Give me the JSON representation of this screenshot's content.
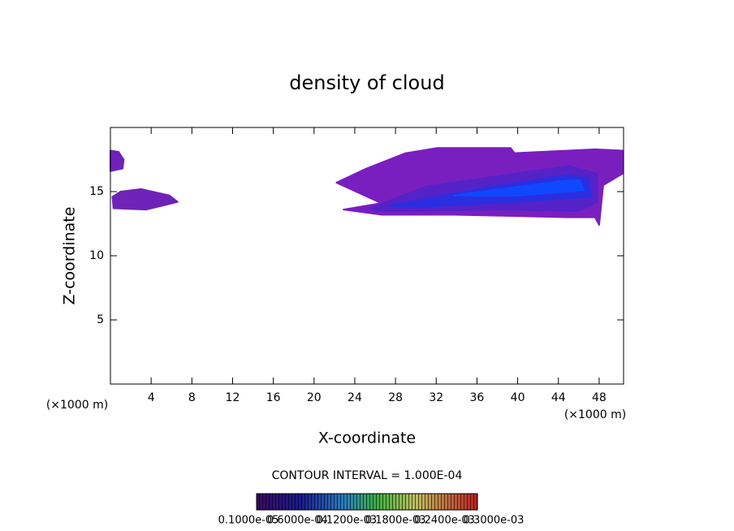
{
  "chart_data": {
    "type": "contour",
    "title": "density of cloud",
    "xlabel": "X-coordinate",
    "ylabel": "Z-coordinate",
    "x_unit_left": "(×1000 m)",
    "x_unit_right": "(×1000 m)",
    "annotation": "CONTOUR INTERVAL = 1.000E-04",
    "xlim": [
      0,
      50.4
    ],
    "ylim": [
      0,
      20
    ],
    "xticks": [
      4,
      8,
      12,
      16,
      20,
      24,
      28,
      32,
      36,
      40,
      44,
      48
    ],
    "yticks": [
      5,
      10,
      15
    ],
    "regions": [
      {
        "level": 1e-06,
        "color": "#6f22b8",
        "x": [
          0,
          1.2,
          1.3,
          0.8,
          0
        ],
        "y": [
          16.6,
          16.8,
          17.5,
          18.1,
          18.2
        ]
      },
      {
        "level": 1e-06,
        "color": "#6f22b8",
        "x": [
          0.3,
          3.5,
          5.6,
          6.6,
          5.8,
          3.0,
          1.0,
          0.2
        ],
        "y": [
          13.7,
          13.6,
          14.0,
          14.2,
          14.7,
          15.2,
          15.0,
          14.6
        ]
      },
      {
        "level": 1e-06,
        "color": "#7a1fbf",
        "x": [
          22.9,
          26.6,
          22.2,
          25,
          29,
          32.1,
          39.3,
          39.7,
          47.6,
          50.3,
          50.3,
          48.4,
          48,
          47.6,
          44.9,
          33.7,
          26.6
        ],
        "y": [
          13.6,
          14.1,
          15.7,
          16.75,
          18,
          18.4,
          18.4,
          18,
          18.3,
          18.2,
          16.4,
          15.5,
          12.4,
          13,
          13,
          13.2,
          13.2
        ]
      },
      {
        "level": 6e-05,
        "color": "#5522c8",
        "x": [
          25.5,
          31,
          38,
          45,
          47.8,
          47.8,
          46,
          38,
          30,
          26
        ],
        "y": [
          13.7,
          15.4,
          16.2,
          17,
          16.4,
          14.2,
          13.5,
          13.6,
          13.5,
          13.5
        ]
      },
      {
        "level": 0.00012,
        "color": "#2a2ee0",
        "x": [
          27.4,
          36.9,
          44.9,
          46.9,
          47.3,
          40.9,
          30.5
        ],
        "y": [
          13.9,
          15.3,
          16.3,
          16,
          14.6,
          14.25,
          13.8
        ]
      },
      {
        "level": 0.00018,
        "color": "#1048ff",
        "x": [
          33.7,
          44.1,
          46.1,
          46.5,
          40.1
        ],
        "y": [
          14.7,
          15.8,
          15.9,
          15.1,
          14.7
        ]
      }
    ],
    "colorbar_labels": [
      "0.1000e-05",
      "0.6000e-04",
      "0.1200e-03",
      "0.1800e-03",
      "0.2400e-03",
      "0.3000e-03"
    ]
  }
}
